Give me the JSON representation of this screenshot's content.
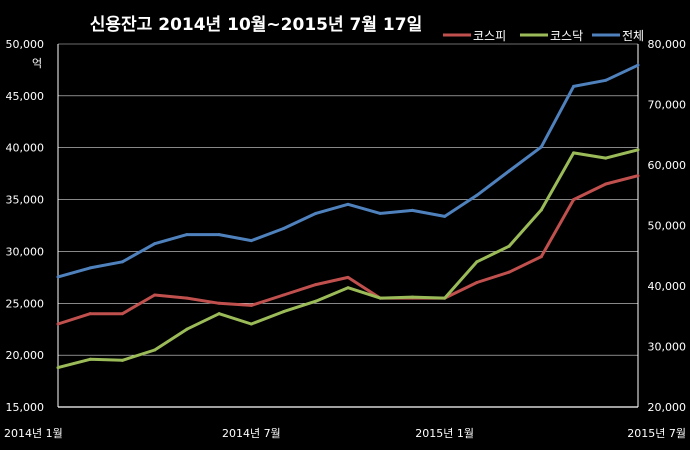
{
  "chart_data": {
    "type": "line",
    "title": "신용잔고 2014년 10월~2015년 7월 17일",
    "left_axis": {
      "unit_label": "억",
      "ylim": [
        15000,
        50000
      ],
      "ticks": [
        15000,
        20000,
        25000,
        30000,
        35000,
        40000,
        45000,
        50000
      ],
      "tick_labels": [
        "15,000",
        "20,000",
        "25,000",
        "30,000",
        "35,000",
        "40,000",
        "45,000",
        "50,000"
      ]
    },
    "right_axis": {
      "ylim": [
        20000,
        80000
      ],
      "ticks": [
        20000,
        30000,
        40000,
        50000,
        60000,
        70000,
        80000
      ],
      "tick_labels": [
        "20,000",
        "30,000",
        "40,000",
        "50,000",
        "60,000",
        "70,000",
        "80,000"
      ]
    },
    "x_axis": {
      "range": [
        "2014-01",
        "2015-07"
      ],
      "ticks": [
        "2014-01",
        "2014-07",
        "2015-01",
        "2015-07"
      ],
      "tick_labels": [
        "2014년 1월",
        "2014년 7월",
        "2015년 1월",
        "2015년 7월"
      ]
    },
    "grid": true,
    "legend_position": "top-right",
    "series": [
      {
        "name": "코스피",
        "color": "#c0504d",
        "axis": "left",
        "x": [
          "2014-01",
          "2014-02",
          "2014-03",
          "2014-04",
          "2014-05",
          "2014-06",
          "2014-07",
          "2014-08",
          "2014-09",
          "2014-10",
          "2014-11",
          "2014-12",
          "2015-01",
          "2015-02",
          "2015-03",
          "2015-04",
          "2015-05",
          "2015-06",
          "2015-07"
        ],
        "values": [
          23000,
          24000,
          24000,
          25800,
          25500,
          25000,
          24800,
          25800,
          26800,
          27500,
          25500,
          25500,
          25500,
          27000,
          28000,
          29500,
          35000,
          36500,
          37300
        ]
      },
      {
        "name": "코스닥",
        "color": "#9bbb59",
        "axis": "left",
        "x": [
          "2014-01",
          "2014-02",
          "2014-03",
          "2014-04",
          "2014-05",
          "2014-06",
          "2014-07",
          "2014-08",
          "2014-09",
          "2014-10",
          "2014-11",
          "2014-12",
          "2015-01",
          "2015-02",
          "2015-03",
          "2015-04",
          "2015-05",
          "2015-06",
          "2015-07"
        ],
        "values": [
          18800,
          19600,
          19500,
          20500,
          22500,
          24000,
          23000,
          24200,
          25200,
          26500,
          25500,
          25600,
          25500,
          29000,
          30500,
          34000,
          39500,
          39000,
          39800
        ]
      },
      {
        "name": "전체",
        "color": "#4f81bd",
        "axis": "right",
        "x": [
          "2014-01",
          "2014-02",
          "2014-03",
          "2014-04",
          "2014-05",
          "2014-06",
          "2014-07",
          "2014-08",
          "2014-09",
          "2014-10",
          "2014-11",
          "2014-12",
          "2015-01",
          "2015-02",
          "2015-03",
          "2015-04",
          "2015-05",
          "2015-06",
          "2015-07"
        ],
        "values": [
          41500,
          43000,
          44000,
          47000,
          48500,
          48500,
          47500,
          49500,
          52000,
          53500,
          52000,
          52500,
          51500,
          55000,
          59000,
          63000,
          73000,
          74000,
          76500
        ]
      }
    ]
  }
}
